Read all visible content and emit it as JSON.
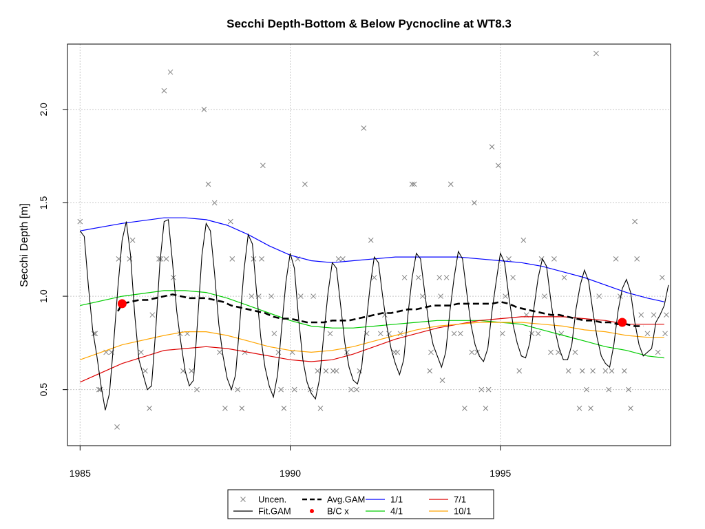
{
  "chart_data": {
    "type": "line",
    "title": "Secchi Depth-Bottom & Below Pycnocline at WT8.3",
    "xlabel": "",
    "ylabel": "Secchi Depth [m]",
    "xlim": [
      1984.7,
      1999.05
    ],
    "ylim": [
      0.2,
      2.35
    ],
    "grid": true,
    "x_ticks": [
      1985,
      1990,
      1995
    ],
    "x_tick_labels": [
      "1985",
      "1990",
      "1995"
    ],
    "y_ticks": [
      0.5,
      1.0,
      1.5,
      2.0
    ],
    "y_tick_labels": [
      "0.5",
      "1.0",
      "1.5",
      "2.0"
    ],
    "legend": {
      "position": "bottom-center",
      "entries": [
        {
          "label": "Uncen.",
          "kind": "point-x",
          "color": "#808080"
        },
        {
          "label": "Fit.GAM",
          "kind": "line",
          "color": "#000000"
        },
        {
          "label": "Avg.GAM",
          "kind": "dashed-line",
          "color": "#000000"
        },
        {
          "label": "B/C x",
          "kind": "point-dot",
          "color": "#ff0000"
        },
        {
          "label": "1/1",
          "kind": "line",
          "color": "#0000ff"
        },
        {
          "label": "4/1",
          "kind": "line",
          "color": "#00cc00"
        },
        {
          "label": "7/1",
          "kind": "line",
          "color": "#dd0000"
        },
        {
          "label": "10/1",
          "kind": "line",
          "color": "#ffa500"
        }
      ]
    },
    "series": [
      {
        "name": "Uncen.",
        "kind": "scatter",
        "color": "#808080",
        "x": [
          1985.0,
          1985.33,
          1985.36,
          1985.45,
          1985.48,
          1985.62,
          1985.75,
          1985.88,
          1985.92,
          1986.18,
          1986.25,
          1986.45,
          1986.55,
          1986.65,
          1986.72,
          1986.88,
          1986.92,
          1987.0,
          1987.05,
          1987.15,
          1987.22,
          1987.38,
          1987.45,
          1987.55,
          1987.65,
          1987.78,
          1987.95,
          1988.05,
          1988.2,
          1988.32,
          1988.45,
          1988.58,
          1988.62,
          1988.75,
          1988.85,
          1988.92,
          1989.08,
          1989.13,
          1989.25,
          1989.32,
          1989.35,
          1989.55,
          1989.62,
          1989.72,
          1989.78,
          1989.85,
          1990.05,
          1990.1,
          1990.18,
          1990.25,
          1990.35,
          1990.48,
          1990.55,
          1990.65,
          1990.72,
          1990.85,
          1990.95,
          1991.02,
          1991.1,
          1991.15,
          1991.25,
          1991.35,
          1991.45,
          1991.58,
          1991.65,
          1991.75,
          1991.82,
          1991.92,
          1992.0,
          1992.15,
          1992.25,
          1992.35,
          1992.48,
          1992.55,
          1992.62,
          1992.72,
          1992.9,
          1992.95,
          1993.05,
          1993.15,
          1993.32,
          1993.35,
          1993.55,
          1993.58,
          1993.62,
          1993.72,
          1993.82,
          1993.9,
          1994.05,
          1994.15,
          1994.32,
          1994.38,
          1994.45,
          1994.55,
          1994.65,
          1994.72,
          1994.8,
          1994.95,
          1995.05,
          1995.12,
          1995.2,
          1995.3,
          1995.45,
          1995.55,
          1995.62,
          1995.75,
          1995.9,
          1995.98,
          1996.05,
          1996.2,
          1996.28,
          1996.38,
          1996.45,
          1996.52,
          1996.62,
          1996.78,
          1996.88,
          1996.95,
          1997.05,
          1997.15,
          1997.2,
          1997.28,
          1997.35,
          1997.5,
          1997.58,
          1997.65,
          1997.75,
          1997.85,
          1997.95,
          1998.05,
          1998.1,
          1998.2,
          1998.25,
          1998.35,
          1998.5,
          1998.65,
          1998.75,
          1998.85,
          1998.95,
          1998.92
        ],
        "y": [
          1.4,
          0.8,
          0.8,
          0.5,
          0.5,
          0.7,
          0.7,
          0.3,
          1.2,
          1.2,
          1.3,
          0.7,
          0.6,
          0.4,
          0.9,
          1.2,
          1.2,
          2.1,
          1.2,
          2.2,
          1.1,
          0.8,
          0.6,
          0.8,
          0.6,
          0.5,
          2.0,
          1.6,
          1.5,
          0.7,
          0.4,
          1.4,
          1.2,
          0.5,
          0.4,
          0.7,
          1.0,
          1.2,
          1.0,
          1.2,
          1.7,
          1.0,
          0.8,
          0.7,
          0.5,
          0.4,
          0.7,
          0.5,
          1.2,
          1.0,
          1.6,
          0.5,
          1.0,
          0.6,
          0.4,
          0.6,
          0.8,
          0.6,
          0.6,
          1.2,
          1.2,
          0.7,
          0.5,
          0.5,
          0.6,
          1.9,
          0.8,
          1.3,
          1.1,
          0.8,
          0.9,
          0.8,
          0.7,
          0.7,
          0.8,
          1.1,
          1.6,
          1.6,
          1.1,
          1.0,
          0.6,
          0.7,
          1.1,
          1.0,
          0.55,
          1.1,
          1.6,
          0.8,
          0.8,
          0.4,
          0.7,
          1.5,
          0.7,
          0.5,
          0.4,
          0.5,
          1.8,
          1.7,
          0.8,
          1.0,
          1.2,
          1.1,
          0.6,
          1.3,
          0.9,
          0.8,
          0.8,
          1.2,
          1.0,
          0.7,
          1.2,
          0.7,
          0.8,
          1.1,
          0.6,
          0.7,
          0.4,
          0.6,
          0.5,
          0.4,
          0.6,
          2.3,
          1.0,
          0.6,
          0.5,
          0.6,
          1.2,
          1.0,
          0.6,
          0.5,
          0.4,
          1.4,
          1.2,
          0.9,
          0.8,
          0.9,
          0.7,
          1.1,
          0.9,
          0.8
        ]
      },
      {
        "name": "Fit.GAM",
        "kind": "line",
        "color": "#000000",
        "x": [
          1985.0,
          1985.1,
          1985.2,
          1985.3,
          1985.4,
          1985.5,
          1985.6,
          1985.7,
          1985.8,
          1985.9,
          1986.0,
          1986.1,
          1986.2,
          1986.3,
          1986.4,
          1986.5,
          1986.6,
          1986.7,
          1986.8,
          1986.9,
          1987.0,
          1987.1,
          1987.2,
          1987.3,
          1987.4,
          1987.5,
          1987.6,
          1987.7,
          1987.8,
          1987.9,
          1988.0,
          1988.1,
          1988.2,
          1988.3,
          1988.4,
          1988.5,
          1988.6,
          1988.7,
          1988.8,
          1988.9,
          1989.0,
          1989.1,
          1989.2,
          1989.3,
          1989.4,
          1989.5,
          1989.6,
          1989.7,
          1989.8,
          1989.9,
          1990.0,
          1990.1,
          1990.2,
          1990.3,
          1990.4,
          1990.5,
          1990.6,
          1990.7,
          1990.8,
          1990.9,
          1991.0,
          1991.1,
          1991.2,
          1991.3,
          1991.4,
          1991.5,
          1991.6,
          1991.7,
          1991.8,
          1991.9,
          1992.0,
          1992.1,
          1992.2,
          1992.3,
          1992.4,
          1992.5,
          1992.6,
          1992.7,
          1992.8,
          1992.9,
          1993.0,
          1993.1,
          1993.2,
          1993.3,
          1993.4,
          1993.5,
          1993.6,
          1993.7,
          1993.8,
          1993.9,
          1994.0,
          1994.1,
          1994.2,
          1994.3,
          1994.4,
          1994.5,
          1994.6,
          1994.7,
          1994.8,
          1994.9,
          1995.0,
          1995.1,
          1995.2,
          1995.3,
          1995.4,
          1995.5,
          1995.6,
          1995.7,
          1995.8,
          1995.9,
          1996.0,
          1996.1,
          1996.2,
          1996.3,
          1996.4,
          1996.5,
          1996.6,
          1996.7,
          1996.8,
          1996.9,
          1997.0,
          1997.1,
          1997.2,
          1997.3,
          1997.4,
          1997.5,
          1997.6,
          1997.7,
          1997.8,
          1997.9,
          1998.0,
          1998.1,
          1998.2,
          1998.3,
          1998.4,
          1998.5,
          1998.6,
          1998.7,
          1998.8,
          1998.9,
          1999.0
        ],
        "y": [
          1.35,
          1.32,
          1.05,
          0.82,
          0.68,
          0.52,
          0.39,
          0.48,
          0.75,
          1.05,
          1.3,
          1.4,
          1.22,
          0.9,
          0.66,
          0.58,
          0.5,
          0.52,
          0.82,
          1.18,
          1.4,
          1.41,
          1.18,
          0.92,
          0.75,
          0.6,
          0.52,
          0.55,
          0.88,
          1.22,
          1.39,
          1.35,
          1.12,
          0.85,
          0.68,
          0.56,
          0.5,
          0.58,
          0.86,
          1.14,
          1.33,
          1.28,
          1.02,
          0.78,
          0.62,
          0.52,
          0.46,
          0.58,
          0.84,
          1.08,
          1.23,
          1.15,
          0.88,
          0.66,
          0.54,
          0.48,
          0.45,
          0.56,
          0.8,
          1.02,
          1.18,
          1.15,
          0.95,
          0.75,
          0.62,
          0.55,
          0.53,
          0.62,
          0.84,
          1.05,
          1.21,
          1.18,
          1.0,
          0.84,
          0.72,
          0.64,
          0.58,
          0.66,
          0.9,
          1.1,
          1.23,
          1.2,
          1.02,
          0.85,
          0.74,
          0.68,
          0.62,
          0.7,
          0.92,
          1.1,
          1.24,
          1.2,
          1.02,
          0.85,
          0.74,
          0.68,
          0.65,
          0.72,
          0.92,
          1.08,
          1.23,
          1.18,
          1.0,
          0.85,
          0.75,
          0.68,
          0.67,
          0.75,
          0.94,
          1.1,
          1.2,
          1.16,
          0.98,
          0.82,
          0.72,
          0.66,
          0.66,
          0.74,
          0.93,
          1.06,
          1.14,
          1.08,
          0.92,
          0.78,
          0.68,
          0.64,
          0.62,
          0.74,
          0.92,
          1.04,
          1.09,
          1.02,
          0.86,
          0.74,
          0.68,
          0.7,
          0.72,
          0.86,
          0.9,
          0.95,
          1.06
        ]
      },
      {
        "name": "Avg.GAM",
        "kind": "dashed-line",
        "color": "#000000",
        "x": [
          1985.9,
          1986.0,
          1986.2,
          1986.4,
          1986.6,
          1986.8,
          1987.0,
          1987.2,
          1987.4,
          1987.6,
          1987.8,
          1988.0,
          1988.2,
          1988.4,
          1988.6,
          1988.8,
          1989.0,
          1989.2,
          1989.4,
          1989.6,
          1989.8,
          1990.0,
          1990.2,
          1990.4,
          1990.6,
          1990.8,
          1991.0,
          1991.2,
          1991.4,
          1991.6,
          1991.8,
          1992.0,
          1992.2,
          1992.4,
          1992.6,
          1992.8,
          1993.0,
          1993.2,
          1993.4,
          1993.6,
          1993.8,
          1994.0,
          1994.2,
          1994.4,
          1994.6,
          1994.8,
          1995.0,
          1995.2,
          1995.4,
          1995.6,
          1995.8,
          1996.0,
          1996.2,
          1996.4,
          1996.6,
          1996.8,
          1997.0,
          1997.2,
          1997.4,
          1997.6,
          1997.8,
          1998.0,
          1998.2,
          1998.4
        ],
        "y": [
          0.92,
          0.96,
          0.97,
          0.98,
          0.98,
          0.99,
          1.0,
          1.01,
          1.0,
          0.99,
          0.99,
          0.99,
          0.98,
          0.97,
          0.95,
          0.94,
          0.93,
          0.92,
          0.91,
          0.89,
          0.88,
          0.88,
          0.87,
          0.86,
          0.86,
          0.86,
          0.87,
          0.87,
          0.87,
          0.88,
          0.89,
          0.9,
          0.91,
          0.91,
          0.92,
          0.93,
          0.93,
          0.94,
          0.95,
          0.95,
          0.95,
          0.96,
          0.96,
          0.96,
          0.96,
          0.96,
          0.97,
          0.96,
          0.94,
          0.93,
          0.92,
          0.91,
          0.9,
          0.9,
          0.89,
          0.88,
          0.87,
          0.87,
          0.86,
          0.86,
          0.85,
          0.85,
          0.84,
          0.84
        ]
      },
      {
        "name": "B/C x",
        "kind": "points",
        "color": "#ff0000",
        "x": [
          1986.0,
          1997.9
        ],
        "y": [
          0.96,
          0.86
        ]
      },
      {
        "name": "1/1",
        "kind": "line",
        "color": "#0000ff",
        "x": [
          1985.0,
          1986.0,
          1987.0,
          1987.5,
          1988.0,
          1988.5,
          1989.0,
          1989.5,
          1990.0,
          1990.5,
          1991.0,
          1991.5,
          1992.0,
          1992.5,
          1993.0,
          1993.5,
          1994.0,
          1994.5,
          1995.0,
          1995.5,
          1996.0,
          1996.5,
          1997.0,
          1997.5,
          1998.0,
          1998.5,
          1998.9
        ],
        "y": [
          1.35,
          1.39,
          1.42,
          1.42,
          1.41,
          1.38,
          1.33,
          1.27,
          1.22,
          1.19,
          1.18,
          1.19,
          1.2,
          1.21,
          1.21,
          1.21,
          1.21,
          1.2,
          1.19,
          1.18,
          1.16,
          1.13,
          1.1,
          1.06,
          1.02,
          0.99,
          0.97
        ]
      },
      {
        "name": "4/1",
        "kind": "line",
        "color": "#00cc00",
        "x": [
          1985.0,
          1986.0,
          1987.0,
          1987.5,
          1988.0,
          1988.5,
          1989.0,
          1989.5,
          1990.0,
          1990.5,
          1991.0,
          1991.5,
          1992.0,
          1992.5,
          1993.0,
          1993.5,
          1994.0,
          1994.5,
          1995.0,
          1995.5,
          1996.0,
          1996.5,
          1997.0,
          1997.5,
          1998.0,
          1998.5,
          1998.9
        ],
        "y": [
          0.95,
          1.0,
          1.03,
          1.03,
          1.02,
          0.99,
          0.95,
          0.91,
          0.87,
          0.84,
          0.83,
          0.83,
          0.84,
          0.85,
          0.86,
          0.87,
          0.87,
          0.87,
          0.86,
          0.85,
          0.82,
          0.79,
          0.76,
          0.73,
          0.71,
          0.68,
          0.67
        ]
      },
      {
        "name": "7/1",
        "kind": "line",
        "color": "#dd0000",
        "x": [
          1985.0,
          1986.0,
          1987.0,
          1987.5,
          1988.0,
          1988.5,
          1989.0,
          1989.5,
          1990.0,
          1990.5,
          1991.0,
          1991.5,
          1992.0,
          1992.5,
          1993.0,
          1993.5,
          1994.0,
          1994.5,
          1995.0,
          1995.5,
          1996.0,
          1996.5,
          1997.0,
          1997.5,
          1998.0,
          1998.5,
          1998.9
        ],
        "y": [
          0.54,
          0.64,
          0.71,
          0.72,
          0.73,
          0.72,
          0.7,
          0.68,
          0.66,
          0.65,
          0.66,
          0.69,
          0.73,
          0.77,
          0.8,
          0.83,
          0.85,
          0.87,
          0.88,
          0.89,
          0.89,
          0.89,
          0.88,
          0.87,
          0.85,
          0.85,
          0.85
        ]
      },
      {
        "name": "10/1",
        "kind": "line",
        "color": "#ffa500",
        "x": [
          1985.0,
          1986.0,
          1987.0,
          1987.5,
          1988.0,
          1988.5,
          1989.0,
          1989.5,
          1990.0,
          1990.5,
          1991.0,
          1991.5,
          1992.0,
          1992.5,
          1993.0,
          1993.5,
          1994.0,
          1994.5,
          1995.0,
          1995.5,
          1996.0,
          1996.5,
          1997.0,
          1997.5,
          1998.0,
          1998.5,
          1998.9
        ],
        "y": [
          0.66,
          0.74,
          0.79,
          0.81,
          0.81,
          0.79,
          0.76,
          0.73,
          0.71,
          0.7,
          0.71,
          0.73,
          0.76,
          0.79,
          0.82,
          0.84,
          0.85,
          0.86,
          0.86,
          0.86,
          0.85,
          0.84,
          0.82,
          0.81,
          0.79,
          0.78,
          0.78
        ]
      }
    ]
  }
}
